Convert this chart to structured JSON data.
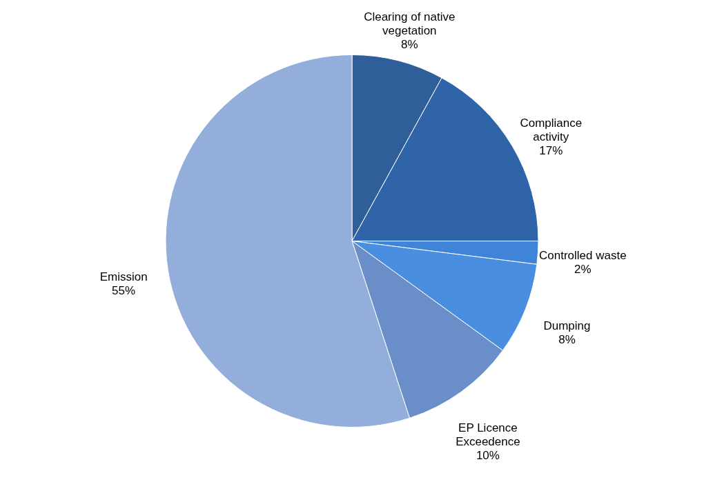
{
  "chart_data": {
    "type": "pie",
    "categories": [
      "Clearing of native vegetation",
      "Compliance activity",
      "Controlled waste",
      "Dumping",
      "EP Licence Exceedence",
      "Emission"
    ],
    "values": [
      8,
      17,
      2,
      8,
      10,
      55
    ],
    "colors": [
      "#2e5f99",
      "#2f64a8",
      "#3f84d6",
      "#4a8ee0",
      "#6a8fc8",
      "#93aedb"
    ],
    "value_labels": [
      "8%",
      "17%",
      "2%",
      "8%",
      "10%",
      "55%"
    ]
  }
}
